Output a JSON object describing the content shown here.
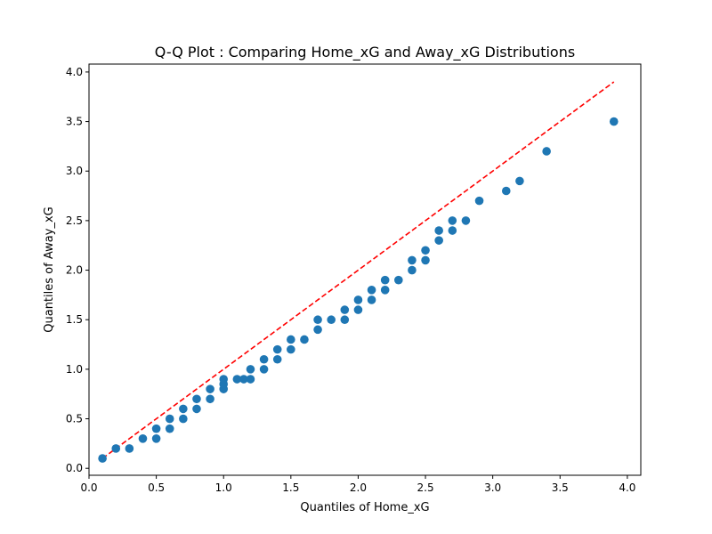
{
  "chart_data": {
    "type": "scatter",
    "title": "Q-Q Plot : Comparing Home_xG and Away_xG Distributions",
    "xlabel": "Quantiles of Home_xG",
    "ylabel": "Quantiles of Away_xG",
    "xlim": [
      -0.0,
      4.1
    ],
    "ylim": [
      -0.07,
      4.08
    ],
    "xticks": [
      "0.0",
      "0.5",
      "1.0",
      "1.5",
      "2.0",
      "2.5",
      "3.0",
      "3.5",
      "4.0"
    ],
    "yticks": [
      "0.0",
      "0.5",
      "1.0",
      "1.5",
      "2.0",
      "2.5",
      "3.0",
      "3.5",
      "4.0"
    ],
    "grid": false,
    "colors": {
      "points": "#1f77b4",
      "reference_line": "#ff0000"
    },
    "reference_line": {
      "style": "dashed",
      "x": [
        0.1,
        3.9
      ],
      "y": [
        0.1,
        3.9
      ]
    },
    "points": [
      [
        0.1,
        0.1
      ],
      [
        0.2,
        0.2
      ],
      [
        0.3,
        0.2
      ],
      [
        0.4,
        0.3
      ],
      [
        0.5,
        0.3
      ],
      [
        0.5,
        0.4
      ],
      [
        0.6,
        0.4
      ],
      [
        0.6,
        0.5
      ],
      [
        0.7,
        0.5
      ],
      [
        0.7,
        0.6
      ],
      [
        0.8,
        0.6
      ],
      [
        0.8,
        0.7
      ],
      [
        0.9,
        0.7
      ],
      [
        0.9,
        0.8
      ],
      [
        1.0,
        0.8
      ],
      [
        1.0,
        0.85
      ],
      [
        1.0,
        0.9
      ],
      [
        1.1,
        0.9
      ],
      [
        1.15,
        0.9
      ],
      [
        1.2,
        0.9
      ],
      [
        1.2,
        1.0
      ],
      [
        1.3,
        1.0
      ],
      [
        1.3,
        1.1
      ],
      [
        1.4,
        1.1
      ],
      [
        1.4,
        1.2
      ],
      [
        1.5,
        1.2
      ],
      [
        1.5,
        1.3
      ],
      [
        1.6,
        1.3
      ],
      [
        1.7,
        1.4
      ],
      [
        1.7,
        1.5
      ],
      [
        1.8,
        1.5
      ],
      [
        1.9,
        1.5
      ],
      [
        1.9,
        1.6
      ],
      [
        2.0,
        1.6
      ],
      [
        2.0,
        1.7
      ],
      [
        2.1,
        1.7
      ],
      [
        2.1,
        1.8
      ],
      [
        2.2,
        1.8
      ],
      [
        2.2,
        1.9
      ],
      [
        2.3,
        1.9
      ],
      [
        2.4,
        2.0
      ],
      [
        2.4,
        2.1
      ],
      [
        2.5,
        2.1
      ],
      [
        2.5,
        2.2
      ],
      [
        2.6,
        2.3
      ],
      [
        2.6,
        2.4
      ],
      [
        2.7,
        2.4
      ],
      [
        2.7,
        2.5
      ],
      [
        2.8,
        2.5
      ],
      [
        2.9,
        2.7
      ],
      [
        3.1,
        2.8
      ],
      [
        3.2,
        2.9
      ],
      [
        3.4,
        3.2
      ],
      [
        3.9,
        3.5
      ]
    ]
  }
}
